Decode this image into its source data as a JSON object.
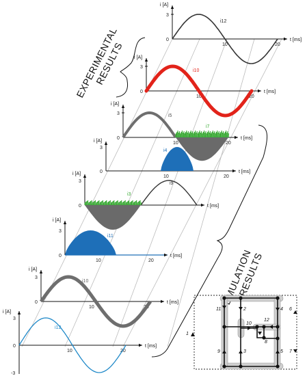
{
  "headings": {
    "experimental": [
      "EXPERIMENTAL",
      "RESULTS"
    ],
    "emulation": [
      "EMULATION",
      "RESULTS"
    ]
  },
  "axis": {
    "y_label": "i [A]",
    "x_label": "t [ms]",
    "y_ticks": [
      "3",
      "0"
    ],
    "y_ticks_last": [
      "3",
      "0",
      "-3"
    ],
    "x_ticks": [
      "10",
      "20"
    ],
    "x_ticks_half": [
      "10"
    ]
  },
  "panels": [
    {
      "id": "p1",
      "label": "i12",
      "color": "#333333",
      "style": "sine-neg"
    },
    {
      "id": "p2",
      "label": "i10",
      "color": "#e2231a",
      "style": "sine-neg-fat"
    },
    {
      "id": "p3",
      "label": "i5",
      "color": "#6e6e6e",
      "style": "half-pos"
    },
    {
      "id": "p4",
      "label": "i7",
      "color": "#3aaa35",
      "style": "half-neg-grass"
    },
    {
      "id": "p5",
      "label": "i4",
      "color": "#1e6fb8",
      "style": "blob"
    },
    {
      "id": "p6",
      "label": "i9",
      "color": "#333333",
      "style": "half-neg-line"
    },
    {
      "id": "p7",
      "label": "i3",
      "color": "#3aaa35",
      "style": "grass-neg"
    },
    {
      "id": "p8",
      "label": "i11",
      "color": "#1e6fb8",
      "style": "blob"
    },
    {
      "id": "p9",
      "label": "i10",
      "color": "#6e6e6e",
      "style": "sine-fat"
    },
    {
      "id": "p10",
      "label": "i12",
      "color": "#1e88c8",
      "style": "sine-line"
    }
  ],
  "circuit": {
    "labels": [
      "1",
      "2",
      "3",
      "4",
      "5",
      "6",
      "7",
      "8",
      "9",
      "10",
      "11",
      "12"
    ]
  }
}
